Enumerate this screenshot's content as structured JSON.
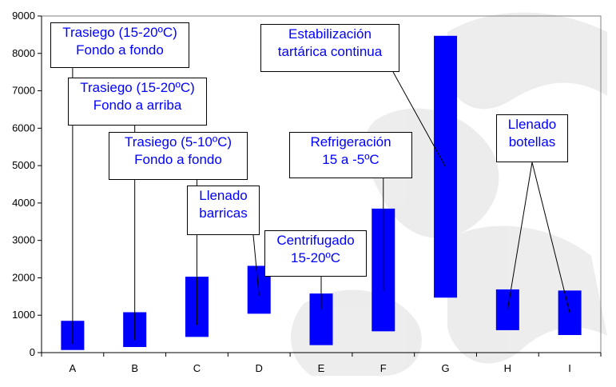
{
  "chart_data": {
    "type": "bar",
    "subtype": "floating-range",
    "categories": [
      "A",
      "B",
      "C",
      "D",
      "E",
      "F",
      "G",
      "H",
      "I"
    ],
    "ranges": [
      [
        70,
        850
      ],
      [
        150,
        1080
      ],
      [
        420,
        2030
      ],
      [
        1040,
        2320
      ],
      [
        200,
        1580
      ],
      [
        570,
        3850
      ],
      [
        1470,
        8470
      ],
      [
        600,
        1690
      ],
      [
        470,
        1660
      ]
    ],
    "ylim": [
      0,
      9000
    ],
    "yticks": [
      0,
      1000,
      2000,
      3000,
      4000,
      5000,
      6000,
      7000,
      8000,
      9000
    ],
    "grid": false,
    "bar_color": "#0000ff",
    "annotation_color": "#0000ff",
    "annotations": [
      {
        "lines": [
          "Trasiego (15-20ºC)",
          "Fondo a fondo"
        ],
        "targets": [
          "A"
        ]
      },
      {
        "lines": [
          "Trasiego (15-20ºC)",
          "Fondo a arriba"
        ],
        "targets": [
          "B"
        ]
      },
      {
        "lines": [
          "Trasiego (5-10ºC)",
          "Fondo a fondo"
        ],
        "targets": [
          "C"
        ]
      },
      {
        "lines": [
          "Llenado",
          "barricas"
        ],
        "targets": [
          "D"
        ]
      },
      {
        "lines": [
          "Centrifugado",
          "15-20ºC"
        ],
        "targets": [
          "E"
        ]
      },
      {
        "lines": [
          "Refrigeración",
          "15 a -5ºC"
        ],
        "targets": [
          "F"
        ]
      },
      {
        "lines": [
          "Estabilización",
          "tartárica continua"
        ],
        "targets": [
          "G"
        ]
      },
      {
        "lines": [
          "Llenado",
          "botellas"
        ],
        "targets": [
          "H",
          "I"
        ]
      }
    ]
  }
}
